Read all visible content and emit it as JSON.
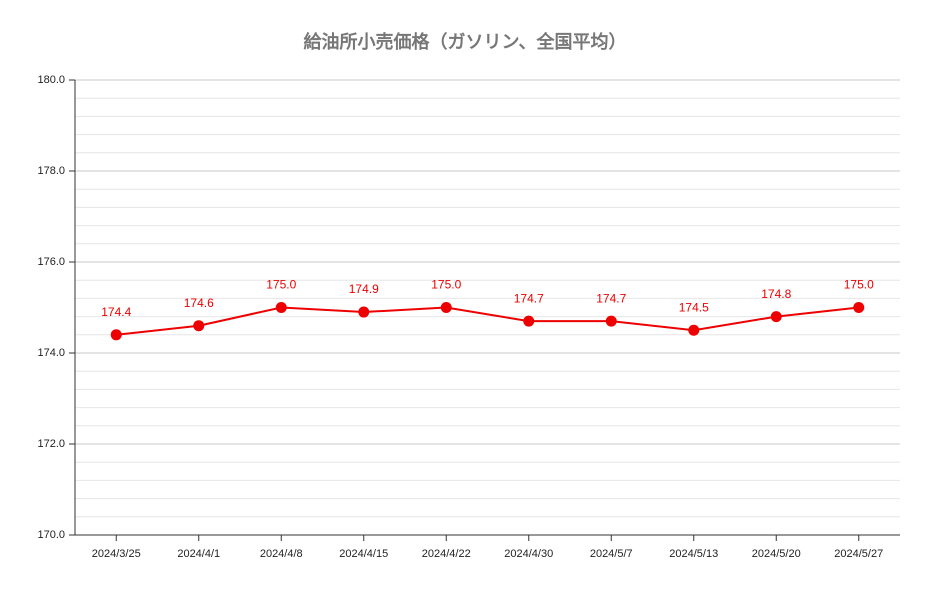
{
  "chart_data": {
    "type": "line",
    "title": "給油所小売価格（ガソリン、全国平均）",
    "categories": [
      "2024/3/25",
      "2024/4/1",
      "2024/4/8",
      "2024/4/15",
      "2024/4/22",
      "2024/4/30",
      "2024/5/7",
      "2024/5/13",
      "2024/5/20",
      "2024/5/27"
    ],
    "series": [
      {
        "name": "ガソリン",
        "color": "#ee0000",
        "values": [
          174.4,
          174.6,
          175.0,
          174.9,
          175.0,
          174.7,
          174.7,
          174.5,
          174.8,
          175.0
        ],
        "value_labels": [
          "174.4",
          "174.6",
          "175.0",
          "174.9",
          "175.0",
          "174.7",
          "174.7",
          "174.5",
          "174.8",
          "175.0"
        ]
      }
    ],
    "ylim": [
      170,
      180
    ],
    "yticks": [
      {
        "value": 170,
        "label": "170.0"
      },
      {
        "value": 172,
        "label": "172.0"
      },
      {
        "value": 174,
        "label": "174.0"
      },
      {
        "value": 176,
        "label": "176.0"
      },
      {
        "value": 178,
        "label": "178.0"
      },
      {
        "value": 180,
        "label": "180.0"
      }
    ],
    "minor_yticks": [
      170.4,
      170.8,
      171.2,
      171.6,
      172.4,
      172.8,
      173.2,
      173.6,
      174.4,
      174.8,
      175.2,
      175.6,
      176.4,
      176.8,
      177.2,
      177.6,
      178.4,
      178.8,
      179.2,
      179.6
    ],
    "grid": true
  }
}
